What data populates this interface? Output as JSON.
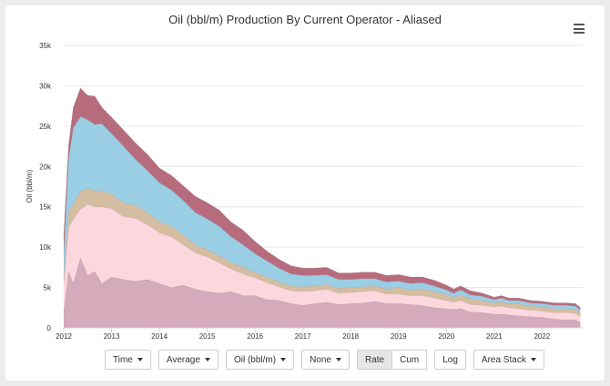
{
  "chart_data": {
    "type": "area",
    "stacked": true,
    "title": "Oil (bbl/m) Production By Current Operator - Aliased",
    "ylabel": "Oil (bbl/m)",
    "xlabel": "",
    "xlim": [
      2012.0,
      2022.85
    ],
    "ylim": [
      0,
      35000
    ],
    "y_ticks": [
      "0",
      "5k",
      "10k",
      "15k",
      "20k",
      "25k",
      "30k",
      "35k"
    ],
    "x_ticks": [
      "2012",
      "2013",
      "2014",
      "2015",
      "2016",
      "2017",
      "2018",
      "2019",
      "2020",
      "2021",
      "2022"
    ],
    "grid": "horizontal",
    "x": [
      2012.0,
      2012.1,
      2012.2,
      2012.35,
      2012.5,
      2012.65,
      2012.8,
      2013.0,
      2013.25,
      2013.5,
      2013.75,
      2014.0,
      2014.25,
      2014.5,
      2014.75,
      2015.0,
      2015.25,
      2015.5,
      2015.75,
      2016.0,
      2016.25,
      2016.5,
      2016.75,
      2017.0,
      2017.25,
      2017.5,
      2017.75,
      2018.0,
      2018.25,
      2018.5,
      2018.75,
      2019.0,
      2019.25,
      2019.5,
      2019.75,
      2020.0,
      2020.15,
      2020.3,
      2020.5,
      2020.75,
      2021.0,
      2021.15,
      2021.3,
      2021.5,
      2021.75,
      2022.0,
      2022.25,
      2022.5,
      2022.7,
      2022.8
    ],
    "series": [
      {
        "color": "#d3a5b7",
        "values": [
          2000,
          7000,
          5500,
          8700,
          6500,
          7000,
          5500,
          6300,
          6000,
          5800,
          6000,
          5500,
          5000,
          5300,
          4800,
          4500,
          4300,
          4500,
          4000,
          4000,
          3500,
          3400,
          3000,
          2800,
          3000,
          3200,
          2900,
          3000,
          3100,
          3300,
          3000,
          3000,
          2900,
          2800,
          2500,
          2400,
          2300,
          2400,
          2000,
          1900,
          1700,
          1700,
          1600,
          1500,
          1400,
          1300,
          1100,
          1000,
          1000,
          700
        ]
      },
      {
        "color": "#fcd5dc",
        "values": [
          3500,
          5500,
          8000,
          6000,
          8800,
          8000,
          9500,
          8500,
          7800,
          7800,
          6800,
          6300,
          6300,
          5000,
          4500,
          4300,
          3800,
          2800,
          2700,
          2200,
          2100,
          1700,
          1600,
          1700,
          1600,
          1600,
          1400,
          1400,
          1400,
          1300,
          1200,
          1200,
          1100,
          1200,
          1200,
          1000,
          900,
          1000,
          900,
          900,
          900,
          1000,
          900,
          900,
          800,
          800,
          800,
          900,
          800,
          700
        ]
      },
      {
        "color": "#d2b99c",
        "values": [
          800,
          2000,
          1800,
          2200,
          2000,
          2000,
          2000,
          1800,
          1700,
          1600,
          1500,
          1400,
          1300,
          1200,
          1000,
          900,
          900,
          800,
          800,
          700,
          700,
          600,
          600,
          600,
          600,
          600,
          600,
          600,
          600,
          600,
          600,
          800,
          700,
          800,
          800,
          700,
          600,
          700,
          700,
          600,
          500,
          600,
          500,
          600,
          500,
          500,
          500,
          500,
          500,
          400
        ]
      },
      {
        "color": "#93cbe4",
        "values": [
          3000,
          6500,
          9500,
          9300,
          8500,
          8200,
          8300,
          7500,
          7000,
          5700,
          5200,
          4800,
          4500,
          4300,
          4000,
          3800,
          3600,
          3200,
          2800,
          2300,
          2000,
          1700,
          1500,
          1400,
          1300,
          1200,
          1100,
          1000,
          1000,
          900,
          900,
          800,
          800,
          800,
          700,
          600,
          500,
          600,
          500,
          500,
          400,
          400,
          400,
          400,
          400,
          400,
          400,
          400,
          400,
          400
        ]
      },
      {
        "color": "#b36477",
        "values": [
          2000,
          1500,
          2500,
          3500,
          3000,
          3500,
          2000,
          2000,
          2000,
          2000,
          2000,
          1800,
          1800,
          1800,
          2000,
          2000,
          2000,
          1800,
          1800,
          1500,
          1200,
          1100,
          1000,
          900,
          900,
          900,
          800,
          800,
          800,
          800,
          800,
          800,
          800,
          700,
          700,
          600,
          500,
          500,
          500,
          400,
          300,
          300,
          300,
          300,
          300,
          300,
          300,
          300,
          300,
          300
        ]
      }
    ]
  },
  "controls": {
    "time": "Time",
    "average": "Average",
    "metric": "Oil (bbl/m)",
    "none": "None",
    "rate": "Rate",
    "cum": "Cum",
    "log": "Log",
    "area_stack": "Area Stack"
  }
}
